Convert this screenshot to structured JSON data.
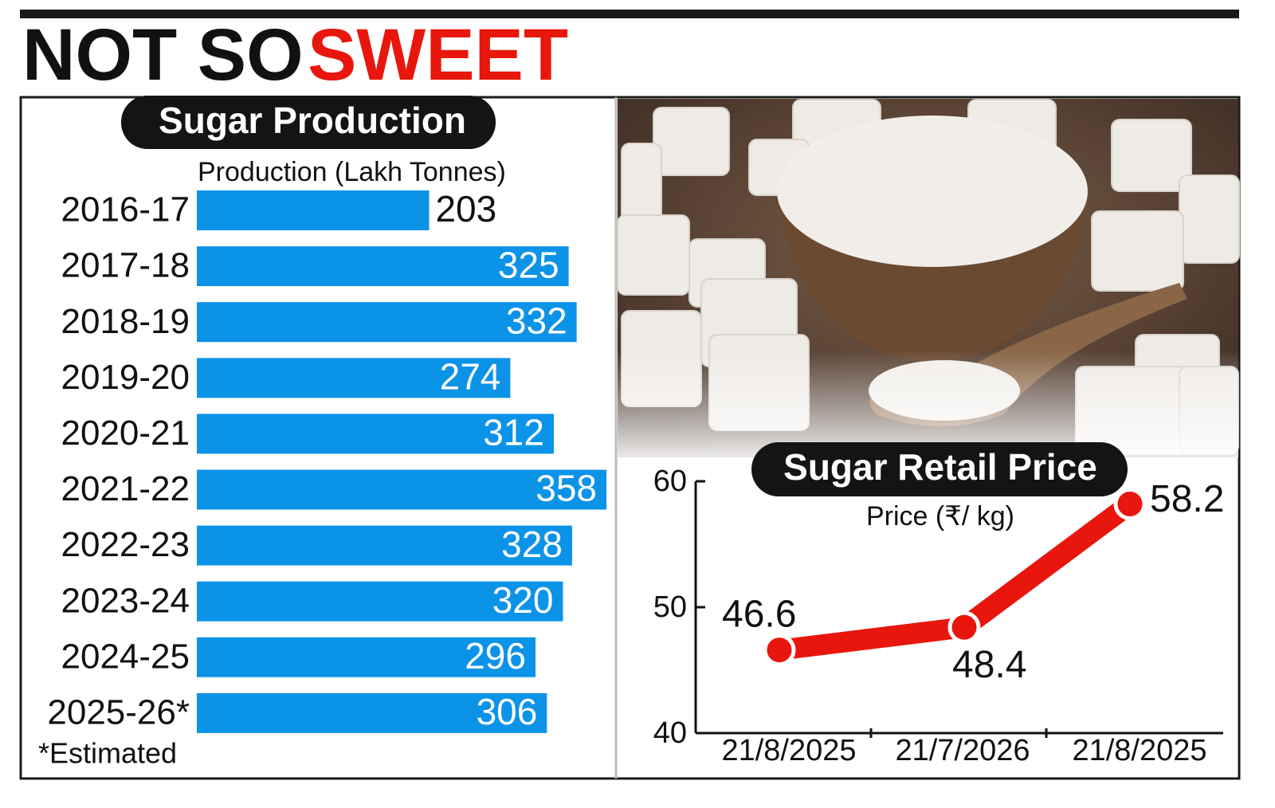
{
  "headline": [
    "NOT SO",
    "SWEET"
  ],
  "chart_data": [
    {
      "type": "bar",
      "orientation": "horizontal",
      "title": "Sugar Production",
      "axis_label": "Production (Lakh Tonnes)",
      "categories": [
        "2016-17",
        "2017-18",
        "2018-19",
        "2019-20",
        "2020-21",
        "2021-22",
        "2022-23",
        "2023-24",
        "2024-25",
        "2025-26*"
      ],
      "values": [
        203,
        325,
        332,
        274,
        312,
        358,
        328,
        320,
        296,
        306
      ],
      "color": "#0b93e8",
      "footnote": "*Estimated"
    },
    {
      "type": "line",
      "title": "Sugar Retail Price",
      "axis_label": "Price (₹/ kg)",
      "categories": [
        "21/8/2025",
        "21/7/2026",
        "21/8/2025"
      ],
      "values": [
        46.6,
        48.4,
        58.2
      ],
      "color": "#e8160c",
      "ylim": [
        40,
        60
      ],
      "yticks": [
        40,
        50,
        60
      ]
    }
  ]
}
